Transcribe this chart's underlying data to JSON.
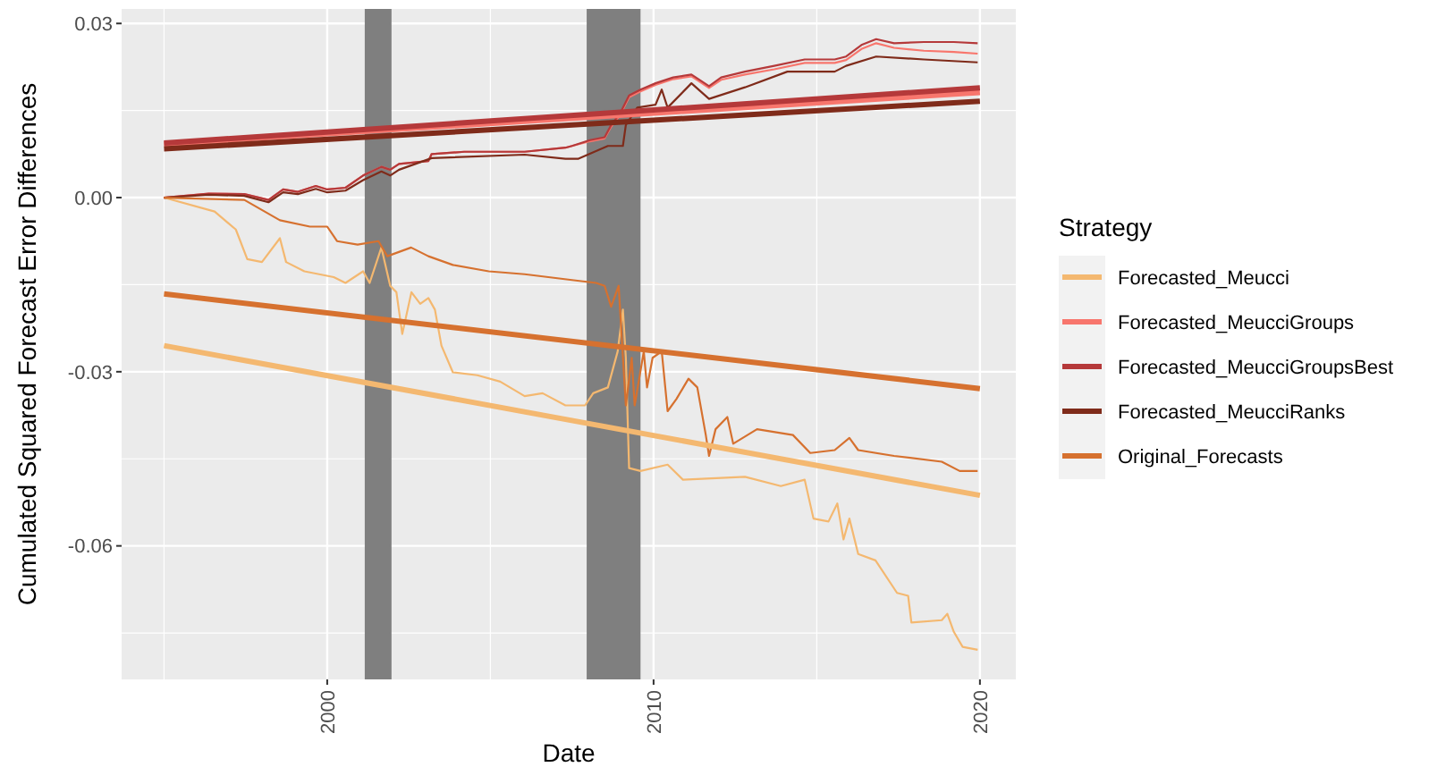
{
  "chart_data": {
    "type": "line",
    "xlabel": "Date",
    "ylabel": "Cumulated Squared Forecast Error Differences",
    "legend_title": "Strategy",
    "legend": "right",
    "grid": true,
    "xlim": [
      1993.7,
      2021.1
    ],
    "ylim": [
      -0.083,
      0.0325
    ],
    "xticks": [
      2000,
      2010,
      2020
    ],
    "yticks": [
      0.03,
      {
        "value": 0,
        "label": "0.00"
      },
      -0.03,
      -0.06
    ],
    "bands": [
      {
        "axis": "x",
        "from": 2001.15,
        "to": 2001.97,
        "color": "#7f7f7f"
      },
      {
        "axis": "x",
        "from": 2007.95,
        "to": 2009.6,
        "color": "#7f7f7f"
      }
    ],
    "series": [
      {
        "name": "Forecasted_Meucci",
        "color": "#f4b870",
        "x": [
          1995,
          1996.55,
          1997.2,
          1997.55,
          1998.0,
          1998.55,
          1998.74,
          1999.3,
          2000.2,
          2000.56,
          2001.1,
          2001.3,
          2001.66,
          2001.93,
          2002.12,
          2002.3,
          2002.58,
          2002.85,
          2003.1,
          2003.3,
          2003.5,
          2003.85,
          2004.6,
          2005.3,
          2006.05,
          2006.6,
          2007.3,
          2007.9,
          2008.15,
          2008.6,
          2008.9,
          2009.06,
          2009.15,
          2009.25,
          2009.6,
          2010.43,
          2010.9,
          2012.8,
          2013.9,
          2014.63,
          2014.9,
          2015.36,
          2015.63,
          2015.82,
          2016.0,
          2016.27,
          2016.8,
          2017.46,
          2017.8,
          2017.9,
          2018.83,
          2019.0,
          2019.2,
          2019.47,
          2019.93
        ],
        "values": [
          0,
          -0.0024,
          -0.0055,
          -0.0106,
          -0.0111,
          -0.007,
          -0.0111,
          -0.0127,
          -0.0137,
          -0.0147,
          -0.0127,
          -0.0147,
          -0.0086,
          -0.0152,
          -0.0163,
          -0.0235,
          -0.0163,
          -0.0183,
          -0.0173,
          -0.0193,
          -0.0255,
          -0.0301,
          -0.0306,
          -0.0317,
          -0.0342,
          -0.0337,
          -0.0358,
          -0.0358,
          -0.0337,
          -0.0327,
          -0.0265,
          -0.0193,
          -0.0276,
          -0.0466,
          -0.0471,
          -0.046,
          -0.0486,
          -0.0481,
          -0.0497,
          -0.0486,
          -0.0553,
          -0.0558,
          -0.0527,
          -0.0589,
          -0.0553,
          -0.0614,
          -0.0625,
          -0.0681,
          -0.0686,
          -0.0732,
          -0.0728,
          -0.0717,
          -0.0748,
          -0.0774,
          -0.0779
        ]
      },
      {
        "name": "Forecasted_MeucciGroups",
        "color": "#f8766d",
        "x": [
          1995,
          1996.37,
          1997.46,
          1998.2,
          1998.65,
          1999.1,
          1999.65,
          2000.0,
          2000.56,
          2001.1,
          2001.66,
          2001.93,
          2002.2,
          2003.1,
          2003.2,
          2004.2,
          2006.05,
          2007.3,
          2007.5,
          2008.05,
          2008.5,
          2008.7,
          2008.97,
          2009.25,
          2009.6,
          2010.06,
          2010.6,
          2011.16,
          2011.7,
          2012.07,
          2012.8,
          2013.7,
          2014.63,
          2015.55,
          2015.9,
          2016.37,
          2016.82,
          2017.37,
          2018.28,
          2019.2,
          2019.93
        ],
        "values": [
          0,
          0.0007,
          0.0006,
          -0.0004,
          0.0014,
          0.001,
          0.002,
          0.0014,
          0.0017,
          0.0038,
          0.0053,
          0.0048,
          0.0058,
          0.0063,
          0.0075,
          0.0079,
          0.0079,
          0.0086,
          0.0089,
          0.0097,
          0.0102,
          0.0122,
          0.0142,
          0.0173,
          0.0183,
          0.0194,
          0.0204,
          0.0209,
          0.0189,
          0.0203,
          0.0212,
          0.0221,
          0.0232,
          0.0232,
          0.0237,
          0.0256,
          0.0266,
          0.0258,
          0.0253,
          0.0251,
          0.0248
        ]
      },
      {
        "name": "Forecasted_MeucciGroupsBest",
        "color": "#b5393a",
        "x": [
          1995,
          1996.37,
          1997.46,
          1998.2,
          1998.65,
          1999.1,
          1999.65,
          2000.0,
          2000.56,
          2001.1,
          2001.66,
          2001.93,
          2002.2,
          2003.1,
          2003.2,
          2004.2,
          2006.05,
          2007.3,
          2007.5,
          2008.05,
          2008.5,
          2008.7,
          2008.97,
          2009.25,
          2009.6,
          2010.06,
          2010.6,
          2011.16,
          2011.7,
          2012.07,
          2012.8,
          2013.7,
          2014.63,
          2015.55,
          2015.9,
          2016.37,
          2016.82,
          2017.37,
          2018.28,
          2019.2,
          2019.93
        ],
        "values": [
          0,
          0.0007,
          0.0006,
          -0.0004,
          0.0014,
          0.001,
          0.002,
          0.0014,
          0.0017,
          0.0038,
          0.0053,
          0.0048,
          0.0058,
          0.0063,
          0.0075,
          0.0079,
          0.0079,
          0.0086,
          0.0089,
          0.0099,
          0.0104,
          0.0125,
          0.0145,
          0.0176,
          0.0186,
          0.0197,
          0.0207,
          0.0212,
          0.0192,
          0.0207,
          0.0217,
          0.0227,
          0.0238,
          0.0238,
          0.0243,
          0.0263,
          0.0273,
          0.0266,
          0.0268,
          0.0268,
          0.0266
        ]
      },
      {
        "name": "Forecasted_MeucciRanks",
        "color": "#7f2b1a",
        "x": [
          1995,
          1996.37,
          1997.46,
          1998.2,
          1998.65,
          1999.1,
          1999.65,
          2000.0,
          2000.56,
          2001.1,
          2001.66,
          2001.93,
          2002.2,
          2003.2,
          2006.05,
          2007.3,
          2007.7,
          2008.6,
          2009.06,
          2009.15,
          2009.5,
          2010.06,
          2010.25,
          2010.43,
          2011.16,
          2011.7,
          2012.8,
          2014.1,
          2015.55,
          2015.9,
          2016.82,
          2018.28,
          2019.93
        ],
        "values": [
          0,
          0.0005,
          0.0003,
          -0.0008,
          0.0009,
          0.0006,
          0.0015,
          0.0009,
          0.0012,
          0.003,
          0.0045,
          0.0038,
          0.0048,
          0.0068,
          0.0074,
          0.0067,
          0.0067,
          0.0089,
          0.0089,
          0.0125,
          0.0155,
          0.016,
          0.0186,
          0.0155,
          0.0197,
          0.017,
          0.019,
          0.0217,
          0.0217,
          0.0227,
          0.0243,
          0.0238,
          0.0233
        ]
      },
      {
        "name": "Original_Forecasts",
        "color": "#d6712f",
        "x": [
          1995,
          1997.46,
          1998.55,
          1999.47,
          2000.0,
          2000.3,
          2000.93,
          2001.57,
          2001.84,
          2002.57,
          2003.1,
          2003.85,
          2004.95,
          2006.05,
          2007.5,
          2008.24,
          2008.5,
          2008.7,
          2008.93,
          2009.15,
          2009.33,
          2009.42,
          2009.7,
          2009.8,
          2009.97,
          2010.25,
          2010.43,
          2010.7,
          2011.07,
          2011.34,
          2011.6,
          2011.7,
          2011.9,
          2012.26,
          2012.44,
          2013.17,
          2014.27,
          2014.8,
          2015.55,
          2016.0,
          2016.27,
          2017.37,
          2018.83,
          2019.38,
          2019.93
        ],
        "values": [
          0,
          -0.0004,
          -0.0039,
          -0.005,
          -0.005,
          -0.0075,
          -0.0081,
          -0.0075,
          -0.0101,
          -0.0086,
          -0.0101,
          -0.0116,
          -0.0127,
          -0.0132,
          -0.0142,
          -0.0147,
          -0.0152,
          -0.0188,
          -0.0152,
          -0.0358,
          -0.0276,
          -0.0358,
          -0.0265,
          -0.0327,
          -0.0276,
          -0.0265,
          -0.0368,
          -0.0347,
          -0.0312,
          -0.0327,
          -0.0409,
          -0.0445,
          -0.0399,
          -0.0378,
          -0.0424,
          -0.0399,
          -0.0409,
          -0.044,
          -0.0435,
          -0.0414,
          -0.0435,
          -0.0445,
          -0.0455,
          -0.0471,
          -0.0471
        ]
      },
      {
        "type": "line",
        "color": "#f4b870",
        "x": [
          1995,
          2020
        ],
        "values": [
          -0.0255,
          -0.0513
        ]
      },
      {
        "type": "line",
        "color": "#f8766d",
        "x": [
          1995,
          2020
        ],
        "values": [
          0.0092,
          0.0181
        ]
      },
      {
        "type": "line",
        "color": "#b5393a",
        "x": [
          1995,
          2020
        ],
        "values": [
          0.0094,
          0.0189
        ]
      },
      {
        "type": "line",
        "color": "#7f2b1a",
        "x": [
          1995,
          2020
        ],
        "values": [
          0.0084,
          0.0166
        ]
      },
      {
        "type": "line",
        "color": "#d6712f",
        "x": [
          1995,
          2020
        ],
        "values": [
          -0.0166,
          -0.0329
        ]
      }
    ]
  }
}
